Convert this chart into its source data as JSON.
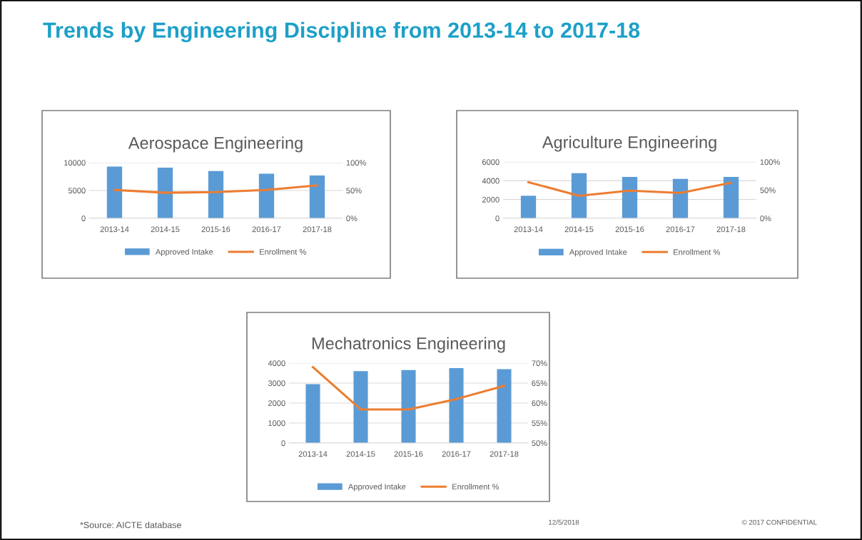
{
  "chart_data": [
    {
      "type": "bar",
      "title": "Aerospace Engineering",
      "categories": [
        "2013-14",
        "2014-15",
        "2015-16",
        "2016-17",
        "2017-18"
      ],
      "series": [
        {
          "name": "Approved Intake",
          "color": "#5b9bd5",
          "values": [
            9300,
            9100,
            8500,
            8000,
            7700
          ]
        },
        {
          "name": "Enrollment %",
          "type": "line",
          "axis": "y2",
          "color": "#ed7d31",
          "values": [
            51,
            46,
            47,
            51,
            59
          ]
        }
      ],
      "ylim": [
        0,
        10000
      ],
      "yticks": [
        0,
        5000,
        10000
      ],
      "y2lim": [
        0,
        100
      ],
      "y2ticks": [
        {
          "value": 0,
          "label": "0%"
        },
        {
          "value": 50,
          "label": "50%"
        },
        {
          "value": 100,
          "label": "100%"
        }
      ],
      "grid": "y",
      "legend": "bottom",
      "marker": "none",
      "annotations": [
        "Trends by Engineering Discipline from 2013-14 to 2017-18",
        "*Source: AICTE database",
        "12/5/2018",
        "© 2017 CONFIDENTIAL"
      ]
    },
    {
      "type": "bar",
      "title": "Agriculture Engineering",
      "categories": [
        "2013-14",
        "2014-15",
        "2015-16",
        "2016-17",
        "2017-18"
      ],
      "series": [
        {
          "name": "Approved Intake",
          "color": "#5b9bd5",
          "values": [
            2400,
            4800,
            4400,
            4200,
            4400
          ]
        },
        {
          "name": "Enrollment %",
          "type": "line",
          "axis": "y2",
          "color": "#ed7d31",
          "values": [
            64,
            40,
            49,
            45,
            63
          ]
        }
      ],
      "ylim": [
        0,
        6000
      ],
      "yticks": [
        0,
        2000,
        4000,
        6000
      ],
      "y2lim": [
        0,
        100
      ],
      "y2ticks": [
        {
          "value": 0,
          "label": "0%"
        },
        {
          "value": 50,
          "label": "50%"
        },
        {
          "value": 100,
          "label": "100%"
        }
      ],
      "grid": "y",
      "legend": "bottom",
      "marker": "none"
    },
    {
      "type": "bar",
      "title": "Mechatronics Engineering",
      "categories": [
        "2013-14",
        "2014-15",
        "2015-16",
        "2016-17",
        "2017-18"
      ],
      "series": [
        {
          "name": "Approved Intake",
          "color": "#5b9bd5",
          "values": [
            2950,
            3600,
            3650,
            3750,
            3700
          ]
        },
        {
          "name": "Enrollment %",
          "type": "line",
          "axis": "y2",
          "color": "#ed7d31",
          "values": [
            69,
            58.4,
            58.4,
            61,
            64.3
          ]
        }
      ],
      "ylim": [
        0,
        4000
      ],
      "yticks": [
        0,
        1000,
        2000,
        3000,
        4000
      ],
      "y2lim": [
        50,
        70
      ],
      "y2ticks": [
        {
          "value": 50,
          "label": "50%"
        },
        {
          "value": 55,
          "label": "55%"
        },
        {
          "value": 60,
          "label": "60%"
        },
        {
          "value": 65,
          "label": "65%"
        },
        {
          "value": 70,
          "label": "70%"
        }
      ],
      "grid": "y",
      "legend": "bottom",
      "marker": "none"
    }
  ]
}
